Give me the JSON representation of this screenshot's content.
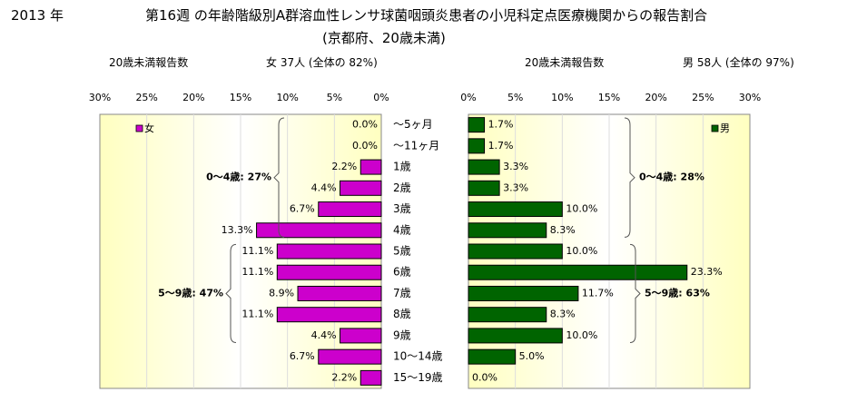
{
  "header": {
    "year": "2013 年",
    "title": "第16週 の年齢階級別A群溶血性レンサ球菌咽頭炎患者の小児科定点医療機関からの報告割合",
    "subtitle": "(京都府、20歳未満)",
    "female_count_label": "20歳未満報告数",
    "female_summary": "女 37人 (全体の 82%)",
    "male_count_label": "20歳未満報告数",
    "male_summary": "男 58人 (全体の 97%)"
  },
  "colors": {
    "female": "#cc00cc",
    "male": "#006400",
    "plot_gradient_edge": "#ffffc0",
    "plot_gradient_center": "#ffffff"
  },
  "chart_data": [
    {
      "type": "bar",
      "orientation": "horizontal",
      "direction": "right-to-left",
      "series": [
        {
          "name": "女",
          "values": [
            0.0,
            0.0,
            2.2,
            4.4,
            6.7,
            13.3,
            11.1,
            11.1,
            8.9,
            11.1,
            4.4,
            6.7,
            2.2
          ]
        }
      ],
      "value_labels": [
        "0.0%",
        "0.0%",
        "2.2%",
        "4.4%",
        "6.7%",
        "13.3%",
        "11.1%",
        "11.1%",
        "8.9%",
        "11.1%",
        "4.4%",
        "6.7%",
        "2.2%"
      ],
      "xlim": [
        0,
        30
      ],
      "ticks": [
        "30%",
        "25%",
        "20%",
        "15%",
        "10%",
        "5%",
        "0%"
      ],
      "legend": "女",
      "legend_position": "top-left",
      "groups": [
        {
          "label": "0〜4歳: 27%",
          "from": 0,
          "to": 5
        },
        {
          "label": "5〜9歳: 47%",
          "from": 6,
          "to": 10
        }
      ]
    },
    {
      "type": "bar",
      "orientation": "horizontal",
      "direction": "left-to-right",
      "series": [
        {
          "name": "男",
          "values": [
            1.7,
            1.7,
            3.3,
            3.3,
            10.0,
            8.3,
            10.0,
            23.3,
            11.7,
            8.3,
            10.0,
            5.0,
            0.0
          ]
        }
      ],
      "value_labels": [
        "1.7%",
        "1.7%",
        "3.3%",
        "3.3%",
        "10.0%",
        "8.3%",
        "10.0%",
        "23.3%",
        "11.7%",
        "8.3%",
        "10.0%",
        "5.0%",
        "0.0%"
      ],
      "xlim": [
        0,
        30
      ],
      "ticks": [
        "0%",
        "5%",
        "10%",
        "15%",
        "20%",
        "25%",
        "30%"
      ],
      "legend": "男",
      "legend_position": "top-right",
      "groups": [
        {
          "label": "0〜4歳: 28%",
          "from": 0,
          "to": 5
        },
        {
          "label": "5〜9歳: 63%",
          "from": 6,
          "to": 10
        }
      ]
    }
  ],
  "categories": [
    "〜5ヶ月",
    "〜11ヶ月",
    "1歳",
    "2歳",
    "3歳",
    "4歳",
    "5歳",
    "6歳",
    "7歳",
    "8歳",
    "9歳",
    "10〜14歳",
    "15〜19歳"
  ]
}
